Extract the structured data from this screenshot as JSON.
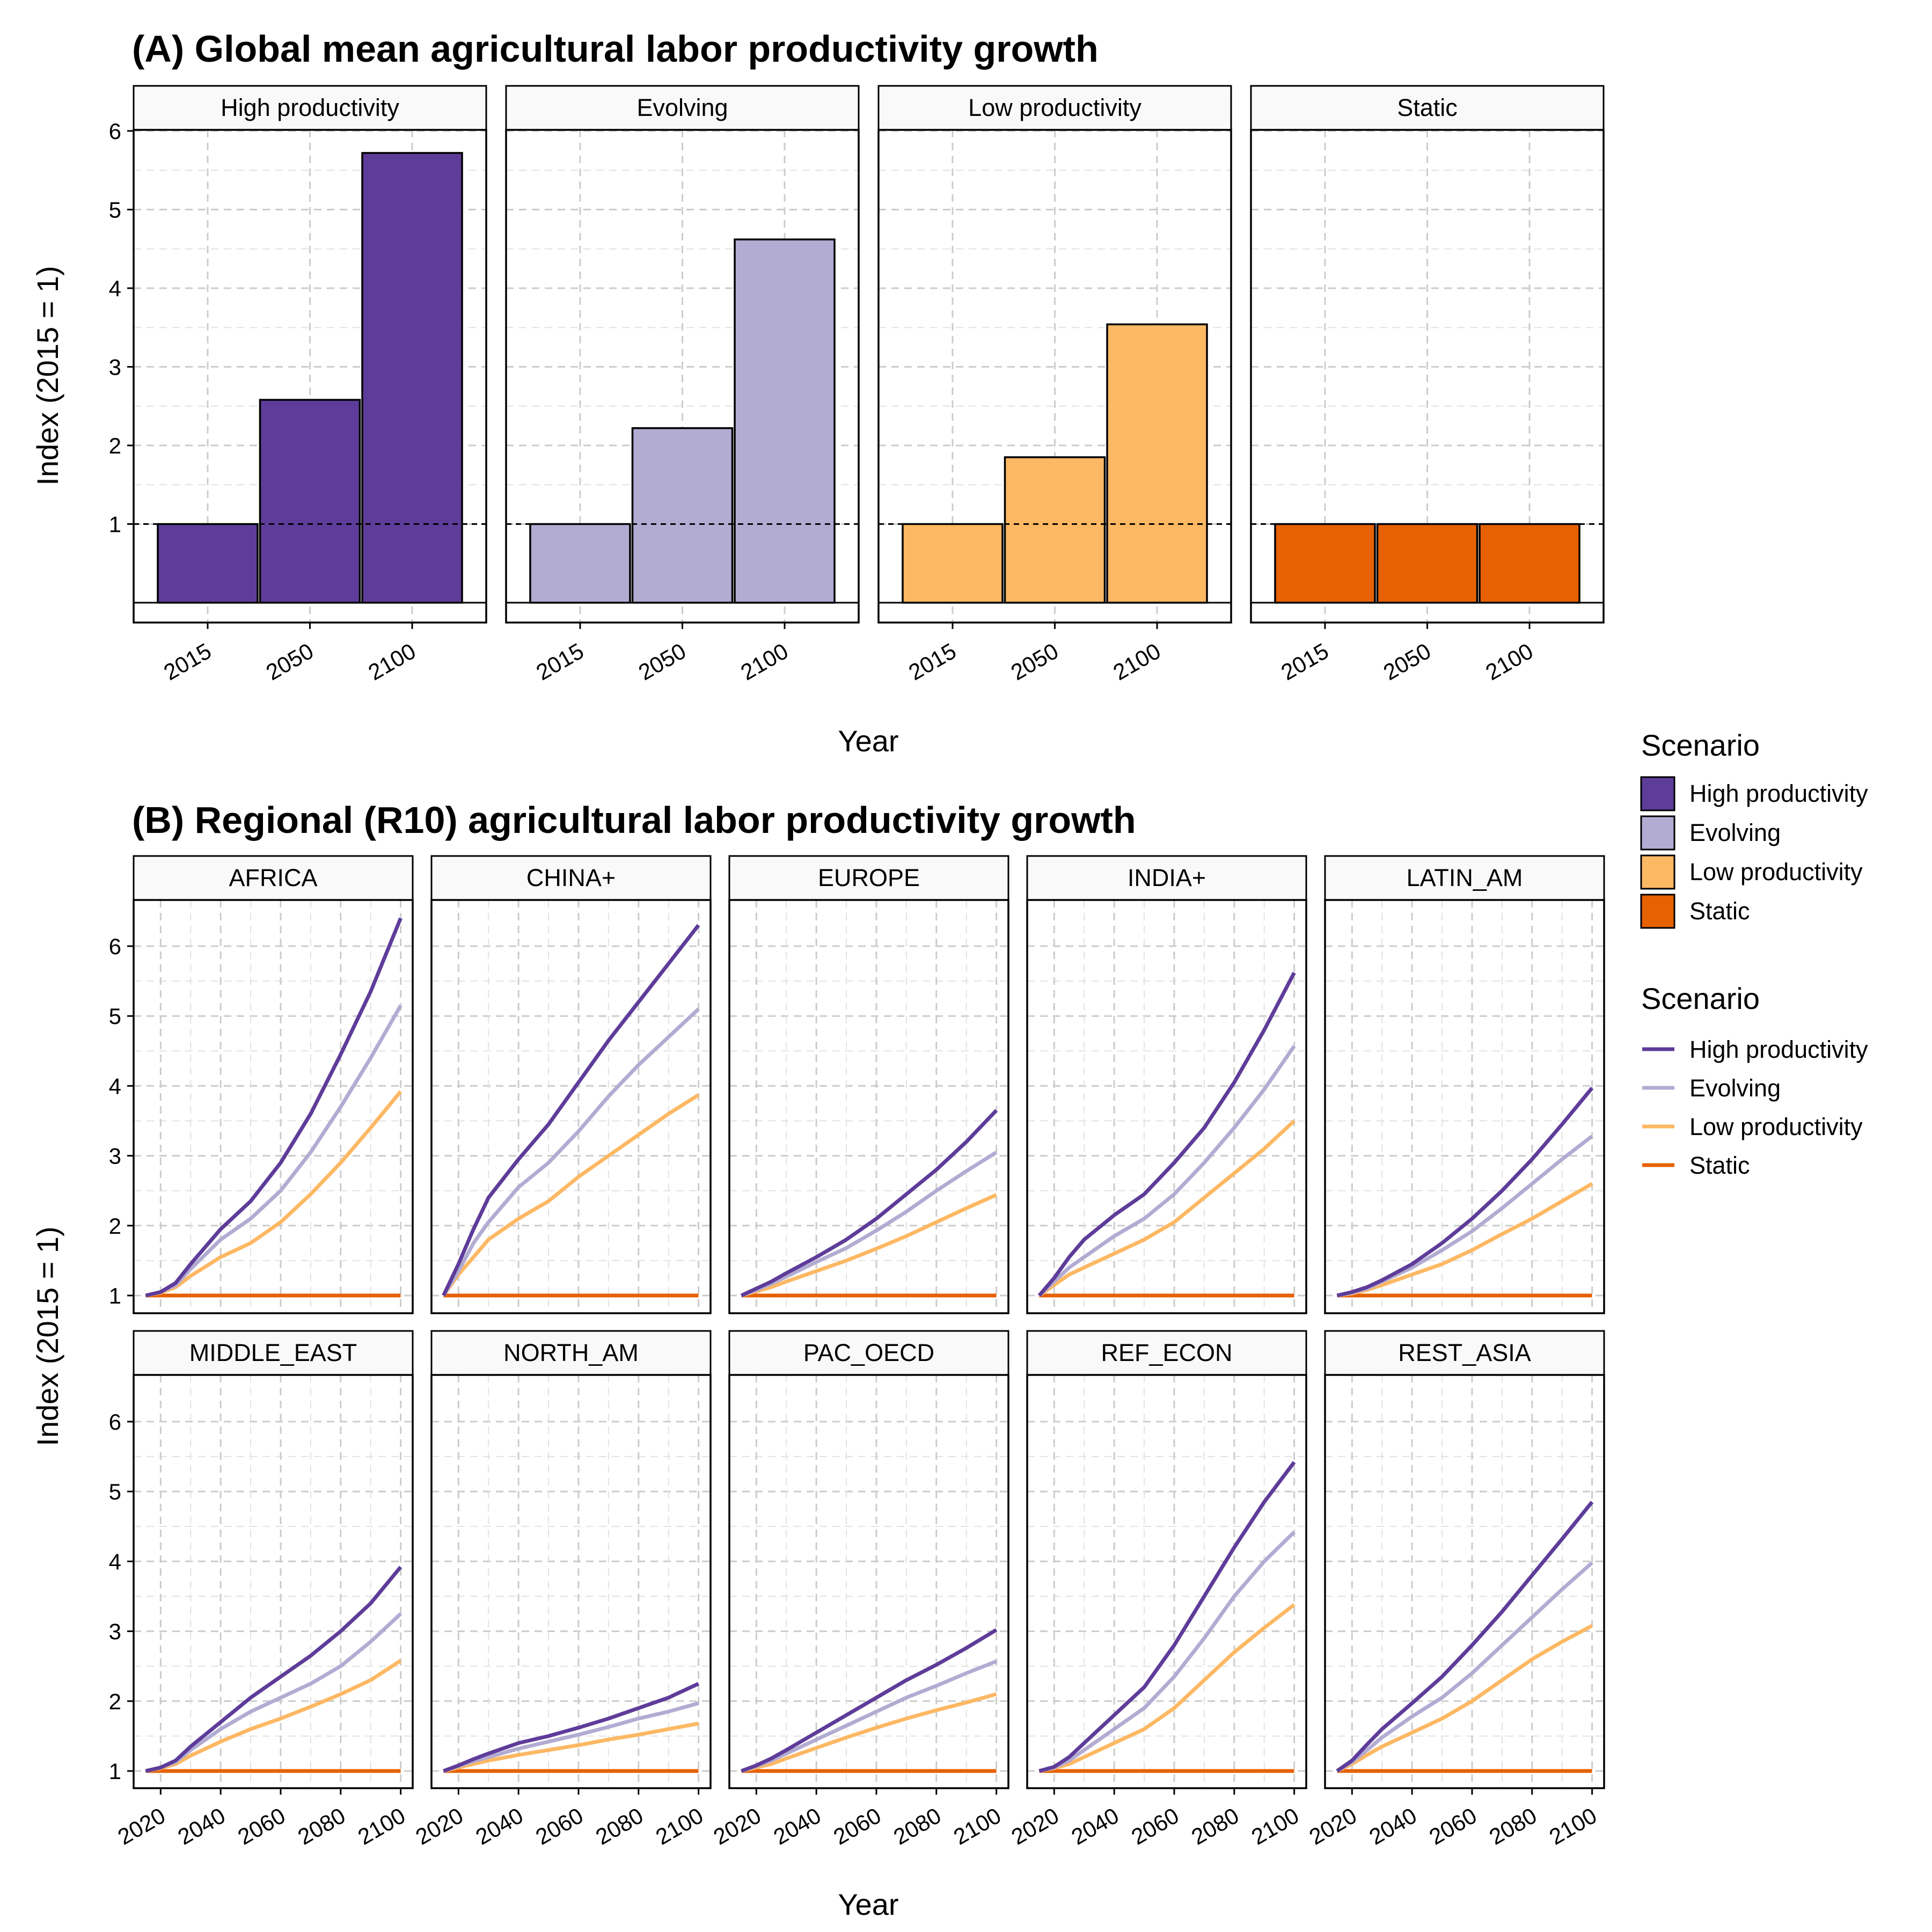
{
  "colors": {
    "High productivity": "#5e3c99",
    "Evolving": "#b2abd2",
    "Low productivity": "#fdb863",
    "Static": "#e66101",
    "grid": "#cccccc",
    "strip_bg": "#f9f9f9"
  },
  "chart_data": [
    {
      "type": "bar",
      "title": "(A) Global mean agricultural labor productivity growth",
      "xlabel": "Year",
      "ylabel": "Index (2015 = 1)",
      "ylim": [
        0,
        6
      ],
      "yticks": [
        1,
        2,
        3,
        4,
        5,
        6
      ],
      "categories": [
        "2015",
        "2050",
        "2100"
      ],
      "facets": [
        {
          "name": "High productivity",
          "values": [
            1,
            2.58,
            5.72
          ]
        },
        {
          "name": "Evolving",
          "values": [
            1,
            2.22,
            4.62
          ]
        },
        {
          "name": "Low productivity",
          "values": [
            1,
            1.85,
            3.54
          ]
        },
        {
          "name": "Static",
          "values": [
            1,
            1,
            1
          ]
        }
      ],
      "legend": {
        "title": "Scenario",
        "entries": [
          "High productivity",
          "Evolving",
          "Low productivity",
          "Static"
        ],
        "position": "right"
      },
      "grid": true
    },
    {
      "type": "line",
      "title": "(B) Regional (R10) agricultural labor productivity growth",
      "xlabel": "Year",
      "ylabel": "Index (2015 = 1)",
      "ylim": [
        1,
        6.4
      ],
      "yticks": [
        1,
        2,
        3,
        4,
        5,
        6
      ],
      "xticks": [
        2020,
        2040,
        2060,
        2080,
        2100
      ],
      "xlim": [
        2011,
        2104
      ],
      "x": [
        2015,
        2020,
        2025,
        2030,
        2040,
        2050,
        2060,
        2070,
        2080,
        2090,
        2100
      ],
      "legend": {
        "title": "Scenario",
        "entries": [
          "High productivity",
          "Evolving",
          "Low productivity",
          "Static"
        ],
        "position": "right"
      },
      "grid": true,
      "facets": [
        {
          "name": "AFRICA",
          "series": [
            {
              "name": "High productivity",
              "values": [
                1,
                1.05,
                1.18,
                1.45,
                1.95,
                2.35,
                2.9,
                3.6,
                4.45,
                5.35,
                6.4
              ]
            },
            {
              "name": "Evolving",
              "values": [
                1,
                1.05,
                1.15,
                1.38,
                1.8,
                2.1,
                2.5,
                3.05,
                3.7,
                4.4,
                5.15
              ]
            },
            {
              "name": "Low productivity",
              "values": [
                1,
                1.04,
                1.12,
                1.28,
                1.55,
                1.75,
                2.05,
                2.45,
                2.9,
                3.4,
                3.92
              ]
            },
            {
              "name": "Static",
              "values": [
                1,
                1,
                1,
                1,
                1,
                1,
                1,
                1,
                1,
                1,
                1
              ]
            }
          ]
        },
        {
          "name": "CHINA+",
          "series": [
            {
              "name": "High productivity",
              "values": [
                1,
                1.45,
                1.95,
                2.4,
                2.95,
                3.45,
                4.05,
                4.65,
                5.2,
                5.75,
                6.3
              ]
            },
            {
              "name": "Evolving",
              "values": [
                1,
                1.35,
                1.75,
                2.05,
                2.55,
                2.9,
                3.35,
                3.85,
                4.3,
                4.7,
                5.1
              ]
            },
            {
              "name": "Low productivity",
              "values": [
                1,
                1.3,
                1.55,
                1.8,
                2.1,
                2.35,
                2.7,
                3.0,
                3.3,
                3.6,
                3.87
              ]
            },
            {
              "name": "Static",
              "values": [
                1,
                1,
                1,
                1,
                1,
                1,
                1,
                1,
                1,
                1,
                1
              ]
            }
          ]
        },
        {
          "name": "EUROPE",
          "series": [
            {
              "name": "High productivity",
              "values": [
                1,
                1.1,
                1.2,
                1.32,
                1.55,
                1.8,
                2.1,
                2.45,
                2.8,
                3.2,
                3.65
              ]
            },
            {
              "name": "Evolving",
              "values": [
                1,
                1.08,
                1.17,
                1.27,
                1.48,
                1.68,
                1.93,
                2.2,
                2.5,
                2.78,
                3.05
              ]
            },
            {
              "name": "Low productivity",
              "values": [
                1,
                1.06,
                1.12,
                1.2,
                1.35,
                1.5,
                1.67,
                1.85,
                2.05,
                2.25,
                2.44
              ]
            },
            {
              "name": "Static",
              "values": [
                1,
                1,
                1,
                1,
                1,
                1,
                1,
                1,
                1,
                1,
                1
              ]
            }
          ]
        },
        {
          "name": "INDIA+",
          "series": [
            {
              "name": "High productivity",
              "values": [
                1,
                1.25,
                1.55,
                1.8,
                2.15,
                2.45,
                2.9,
                3.4,
                4.05,
                4.8,
                5.62
              ]
            },
            {
              "name": "Evolving",
              "values": [
                1,
                1.2,
                1.4,
                1.55,
                1.85,
                2.1,
                2.45,
                2.9,
                3.4,
                3.95,
                4.57
              ]
            },
            {
              "name": "Low productivity",
              "values": [
                1,
                1.15,
                1.3,
                1.4,
                1.6,
                1.8,
                2.05,
                2.4,
                2.75,
                3.1,
                3.5
              ]
            },
            {
              "name": "Static",
              "values": [
                1,
                1,
                1,
                1,
                1,
                1,
                1,
                1,
                1,
                1,
                1
              ]
            }
          ]
        },
        {
          "name": "LATIN_AM",
          "series": [
            {
              "name": "High productivity",
              "values": [
                1,
                1.05,
                1.12,
                1.22,
                1.45,
                1.75,
                2.1,
                2.5,
                2.95,
                3.45,
                3.97
              ]
            },
            {
              "name": "Evolving",
              "values": [
                1,
                1.04,
                1.1,
                1.2,
                1.4,
                1.65,
                1.92,
                2.25,
                2.6,
                2.95,
                3.28
              ]
            },
            {
              "name": "Low productivity",
              "values": [
                1,
                1.03,
                1.08,
                1.15,
                1.3,
                1.45,
                1.65,
                1.88,
                2.1,
                2.35,
                2.6
              ]
            },
            {
              "name": "Static",
              "values": [
                1,
                1,
                1,
                1,
                1,
                1,
                1,
                1,
                1,
                1,
                1
              ]
            }
          ]
        },
        {
          "name": "MIDDLE_EAST",
          "series": [
            {
              "name": "High productivity",
              "values": [
                1,
                1.05,
                1.15,
                1.35,
                1.7,
                2.05,
                2.35,
                2.65,
                3.0,
                3.4,
                3.92
              ]
            },
            {
              "name": "Evolving",
              "values": [
                1,
                1.05,
                1.13,
                1.3,
                1.6,
                1.85,
                2.05,
                2.25,
                2.5,
                2.85,
                3.25
              ]
            },
            {
              "name": "Low productivity",
              "values": [
                1,
                1.04,
                1.1,
                1.22,
                1.42,
                1.6,
                1.75,
                1.92,
                2.1,
                2.3,
                2.58
              ]
            },
            {
              "name": "Static",
              "values": [
                1,
                1,
                1,
                1,
                1,
                1,
                1,
                1,
                1,
                1,
                1
              ]
            }
          ]
        },
        {
          "name": "NORTH_AM",
          "series": [
            {
              "name": "High productivity",
              "values": [
                1,
                1.08,
                1.17,
                1.25,
                1.4,
                1.5,
                1.62,
                1.75,
                1.9,
                2.05,
                2.25
              ]
            },
            {
              "name": "Evolving",
              "values": [
                1,
                1.07,
                1.14,
                1.2,
                1.32,
                1.42,
                1.52,
                1.63,
                1.75,
                1.85,
                1.97
              ]
            },
            {
              "name": "Low productivity",
              "values": [
                1,
                1.05,
                1.1,
                1.15,
                1.23,
                1.3,
                1.37,
                1.45,
                1.52,
                1.6,
                1.68
              ]
            },
            {
              "name": "Static",
              "values": [
                1,
                1,
                1,
                1,
                1,
                1,
                1,
                1,
                1,
                1,
                1
              ]
            }
          ]
        },
        {
          "name": "PAC_OECD",
          "series": [
            {
              "name": "High productivity",
              "values": [
                1,
                1.08,
                1.18,
                1.3,
                1.55,
                1.8,
                2.05,
                2.3,
                2.52,
                2.76,
                3.02
              ]
            },
            {
              "name": "Evolving",
              "values": [
                1,
                1.07,
                1.15,
                1.25,
                1.45,
                1.65,
                1.85,
                2.05,
                2.22,
                2.4,
                2.57
              ]
            },
            {
              "name": "Low productivity",
              "values": [
                1,
                1.05,
                1.1,
                1.18,
                1.33,
                1.48,
                1.62,
                1.75,
                1.87,
                1.98,
                2.1
              ]
            },
            {
              "name": "Static",
              "values": [
                1,
                1,
                1,
                1,
                1,
                1,
                1,
                1,
                1,
                1,
                1
              ]
            }
          ]
        },
        {
          "name": "REF_ECON",
          "series": [
            {
              "name": "High productivity",
              "values": [
                1,
                1.06,
                1.2,
                1.4,
                1.8,
                2.2,
                2.8,
                3.5,
                4.2,
                4.85,
                5.42
              ]
            },
            {
              "name": "Evolving",
              "values": [
                1,
                1.05,
                1.15,
                1.3,
                1.6,
                1.9,
                2.35,
                2.9,
                3.5,
                4.0,
                4.42
              ]
            },
            {
              "name": "Low productivity",
              "values": [
                1,
                1.04,
                1.1,
                1.2,
                1.4,
                1.6,
                1.9,
                2.3,
                2.7,
                3.05,
                3.38
              ]
            },
            {
              "name": "Static",
              "values": [
                1,
                1,
                1,
                1,
                1,
                1,
                1,
                1,
                1,
                1,
                1
              ]
            }
          ]
        },
        {
          "name": "REST_ASIA",
          "series": [
            {
              "name": "High productivity",
              "values": [
                1,
                1.15,
                1.38,
                1.6,
                1.97,
                2.35,
                2.8,
                3.28,
                3.8,
                4.32,
                4.85
              ]
            },
            {
              "name": "Evolving",
              "values": [
                1,
                1.13,
                1.3,
                1.48,
                1.78,
                2.05,
                2.4,
                2.8,
                3.2,
                3.6,
                3.98
              ]
            },
            {
              "name": "Low productivity",
              "values": [
                1,
                1.1,
                1.23,
                1.35,
                1.55,
                1.75,
                2.0,
                2.3,
                2.6,
                2.85,
                3.08
              ]
            },
            {
              "name": "Static",
              "values": [
                1,
                1,
                1,
                1,
                1,
                1,
                1,
                1,
                1,
                1,
                1
              ]
            }
          ]
        }
      ]
    }
  ]
}
